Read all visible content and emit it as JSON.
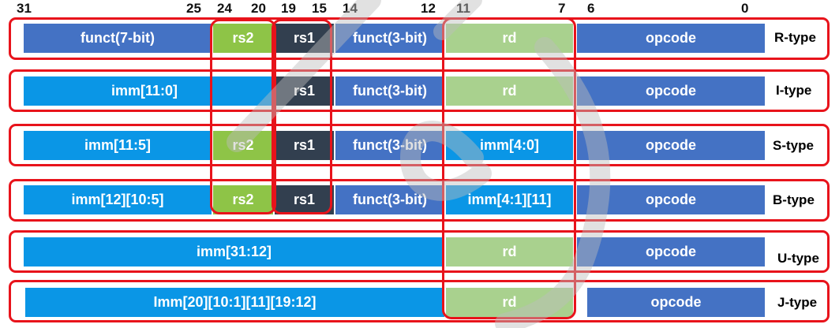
{
  "bit_numbers": [
    "31",
    "25",
    "24",
    "20",
    "19",
    "15",
    "14",
    "12",
    "11",
    "7",
    "6",
    "0"
  ],
  "rows": [
    {
      "type": "R-type",
      "fields": [
        {
          "label": "funct(7-bit)",
          "color": "#4472c4"
        },
        {
          "label": "rs2",
          "color": "#8ec447"
        },
        {
          "label": "rs1",
          "color": "#323f4f"
        },
        {
          "label": "funct(3-bit)",
          "color": "#4472c4"
        },
        {
          "label": "rd",
          "color": "#a9d18e"
        },
        {
          "label": "opcode",
          "color": "#4472c4"
        }
      ]
    },
    {
      "type": "I-type",
      "fields": [
        {
          "label": "imm[11:0]",
          "color": "#0a96e6"
        },
        {
          "label": "rs1",
          "color": "#323f4f"
        },
        {
          "label": "funct(3-bit)",
          "color": "#4472c4"
        },
        {
          "label": "rd",
          "color": "#a9d18e"
        },
        {
          "label": "opcode",
          "color": "#4472c4"
        }
      ]
    },
    {
      "type": "S-type",
      "fields": [
        {
          "label": "imm[11:5]",
          "color": "#0a96e6"
        },
        {
          "label": "rs2",
          "color": "#8ec447"
        },
        {
          "label": "rs1",
          "color": "#323f4f"
        },
        {
          "label": "funct(3-bit)",
          "color": "#4472c4"
        },
        {
          "label": "imm[4:0]",
          "color": "#0a96e6"
        },
        {
          "label": "opcode",
          "color": "#4472c4"
        }
      ]
    },
    {
      "type": "B-type",
      "fields": [
        {
          "label": "imm[12][10:5]",
          "color": "#0a96e6"
        },
        {
          "label": "rs2",
          "color": "#8ec447"
        },
        {
          "label": "rs1",
          "color": "#323f4f"
        },
        {
          "label": "funct(3-bit)",
          "color": "#4472c4"
        },
        {
          "label": "imm[4:1][11]",
          "color": "#0a96e6"
        },
        {
          "label": "opcode",
          "color": "#4472c4"
        }
      ]
    },
    {
      "type": "U-type",
      "fields": [
        {
          "label": "imm[31:12]",
          "color": "#0a96e6"
        },
        {
          "label": "rd",
          "color": "#a9d18e"
        },
        {
          "label": "opcode",
          "color": "#4472c4"
        }
      ]
    },
    {
      "type": "J-type",
      "fields": [
        {
          "label": "Imm[20][10:1][11][19:12]",
          "color": "#0a96e6"
        },
        {
          "label": "rd",
          "color": "#a9d18e"
        },
        {
          "label": "opcode",
          "color": "#4472c4"
        }
      ]
    }
  ],
  "highlight_color": "#e8131b"
}
